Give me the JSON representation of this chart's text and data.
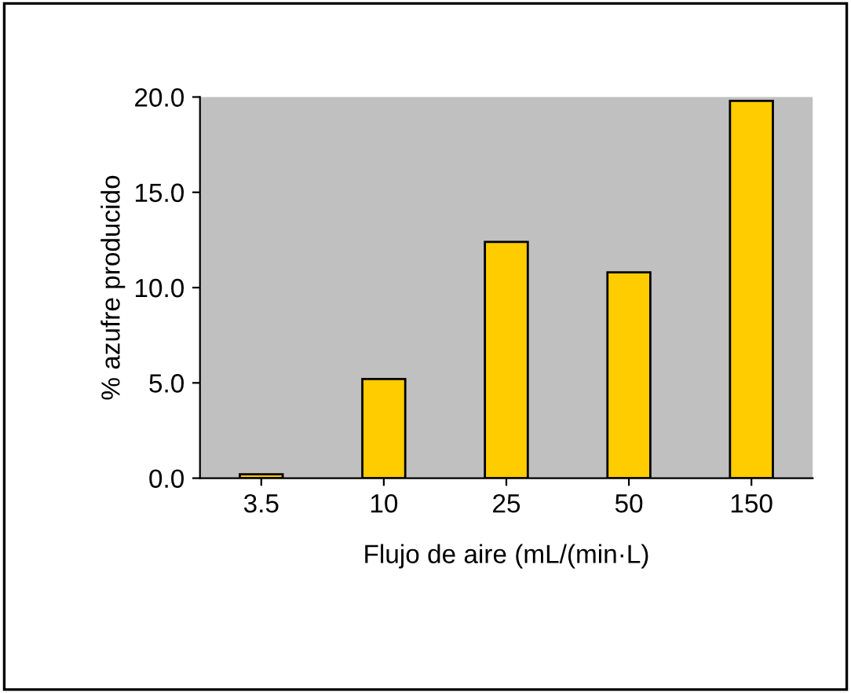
{
  "chart_data": {
    "type": "bar",
    "xlabel": "Flujo de aire (mL/(min·L)",
    "ylabel": "% azufre producido",
    "categories": [
      "3.5",
      "10",
      "25",
      "50",
      "150"
    ],
    "values": [
      0.2,
      5.2,
      12.4,
      10.8,
      19.8
    ],
    "color": "#ffcc00",
    "ylim": [
      0,
      20
    ],
    "yticks": [
      {
        "value": 0,
        "label": "0.0"
      },
      {
        "value": 5,
        "label": "5.0"
      },
      {
        "value": 10,
        "label": "10.0"
      },
      {
        "value": 15,
        "label": "15.0"
      },
      {
        "value": 20,
        "label": "20.0"
      }
    ],
    "grid": false,
    "legend": false
  }
}
